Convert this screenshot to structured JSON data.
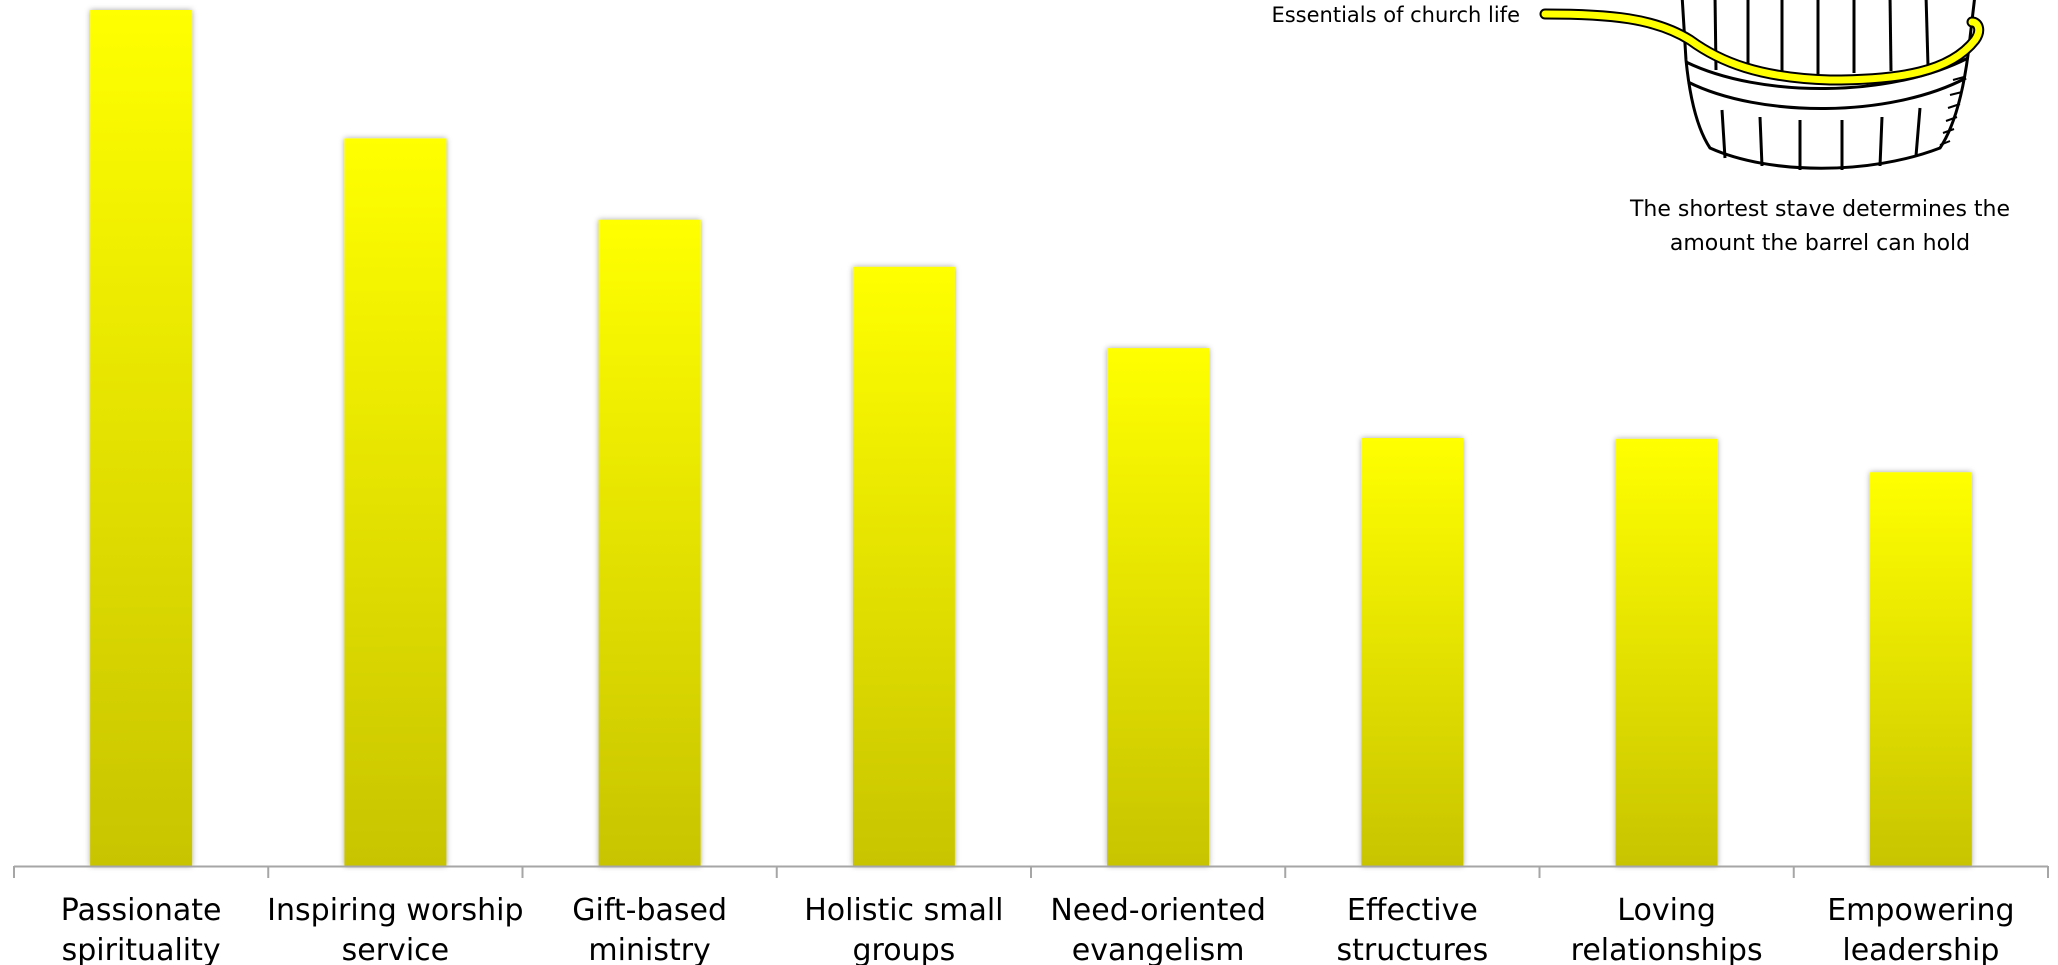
{
  "chart_data": {
    "type": "bar",
    "categories": [
      [
        "Passionate",
        "spirituality"
      ],
      [
        "Inspiring worship",
        "service"
      ],
      [
        "Gift-based",
        "ministry"
      ],
      [
        "Holistic small",
        "groups"
      ],
      [
        "Need-oriented",
        "evangelism"
      ],
      [
        "Effective",
        "structures"
      ],
      [
        "Loving",
        "relationships"
      ],
      [
        "Empowering",
        "leadership"
      ]
    ],
    "values": [
      100,
      85,
      75.5,
      70,
      60.5,
      50,
      49.9,
      46
    ],
    "ylim": [
      0,
      100
    ],
    "grid": false,
    "bar_color_top": "#ffff00",
    "bar_color_bottom": "#c8c400"
  },
  "annotations": {
    "barrel_label": "Essentials of church life",
    "caption_line1": "The shortest stave determines the",
    "caption_line2": "amount the barrel can hold"
  },
  "illustration": {
    "name": "barrel-illustration",
    "band_color": "#ffff00"
  }
}
